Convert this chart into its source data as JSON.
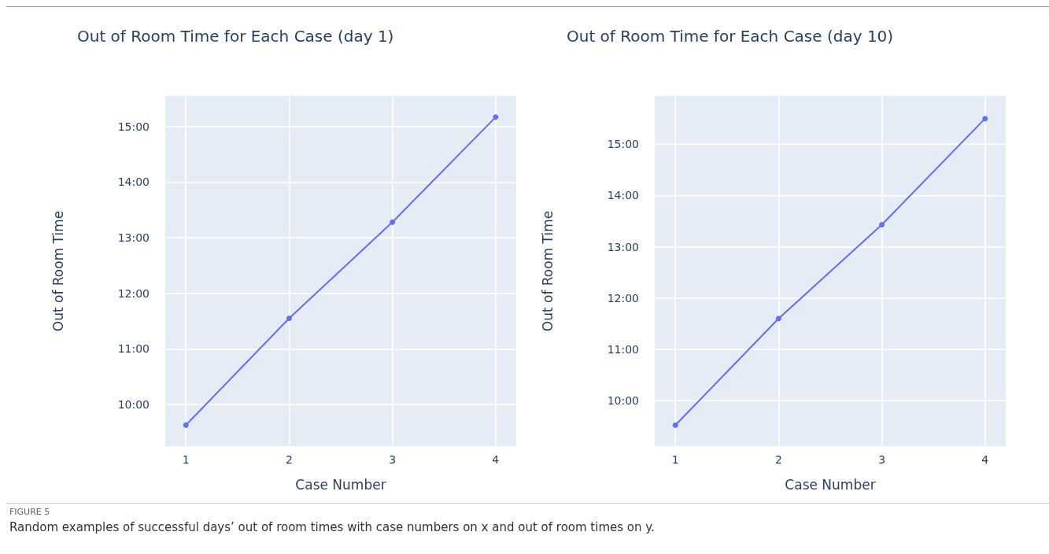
{
  "chart_data": [
    {
      "type": "line",
      "title": "Out of Room Time for Each Case (day 1)",
      "xlabel": "Case Number",
      "ylabel": "Out of Room Time",
      "x": [
        1,
        2,
        3,
        4
      ],
      "series": [
        {
          "color": "#636efa",
          "values": [
            9.63,
            11.55,
            13.28,
            15.17
          ]
        }
      ],
      "xlim": [
        0.8,
        4.2
      ],
      "xticks": [
        1,
        2,
        3,
        4
      ],
      "ylim": [
        9.25,
        15.55
      ],
      "yticks": [
        {
          "value": 10,
          "label": "10:00"
        },
        {
          "value": 11,
          "label": "11:00"
        },
        {
          "value": 12,
          "label": "12:00"
        },
        {
          "value": 13,
          "label": "13:00"
        },
        {
          "value": 14,
          "label": "14:00"
        },
        {
          "value": 15,
          "label": "15:00"
        }
      ],
      "grid": true,
      "marker": "circle",
      "line_style": "solid",
      "annotations": [
        "FIGURE 5",
        "Random examples of successful days’ out of room times with case numbers on x and out of room times on y."
      ]
    },
    {
      "type": "line",
      "title": "Out of Room Time for Each Case (day 10)",
      "xlabel": "Case Number",
      "ylabel": "Out of Room Time",
      "x": [
        1,
        2,
        3,
        4
      ],
      "series": [
        {
          "color": "#636efa",
          "values": [
            9.52,
            11.6,
            13.43,
            15.5
          ]
        }
      ],
      "xlim": [
        0.8,
        4.2
      ],
      "xticks": [
        1,
        2,
        3,
        4
      ],
      "ylim": [
        9.11,
        15.94
      ],
      "yticks": [
        {
          "value": 10,
          "label": "10:00"
        },
        {
          "value": 11,
          "label": "11:00"
        },
        {
          "value": 12,
          "label": "12:00"
        },
        {
          "value": 13,
          "label": "13:00"
        },
        {
          "value": 14,
          "label": "14:00"
        },
        {
          "value": 15,
          "label": "15:00"
        }
      ],
      "grid": true,
      "marker": "circle",
      "line_style": "solid"
    }
  ]
}
